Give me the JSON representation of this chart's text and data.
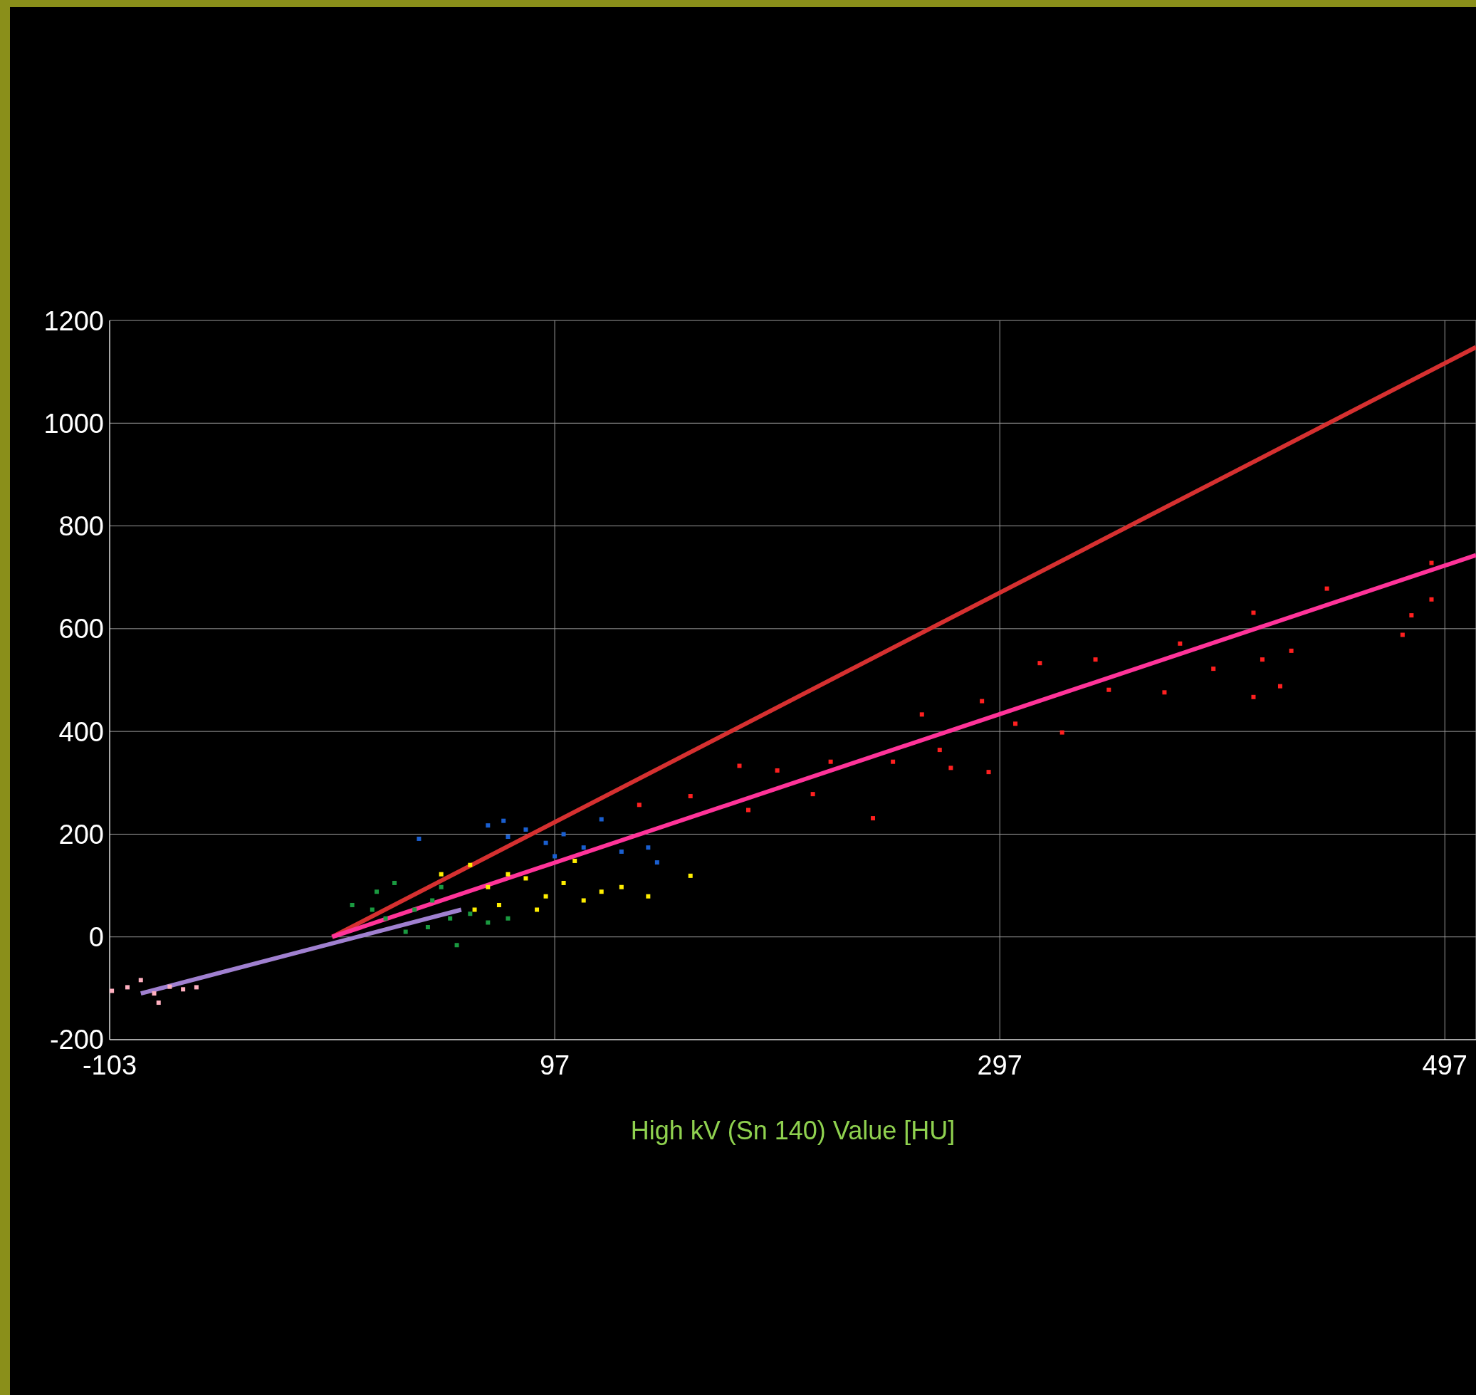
{
  "chart_data": {
    "type": "scatter",
    "xlabel": "High kV (Sn 140) Value [HU]",
    "xlim": [
      -103,
      511
    ],
    "ylim": [
      -200,
      1200
    ],
    "xticks": [
      -103,
      97,
      297,
      497
    ],
    "yticks": [
      -200,
      0,
      200,
      400,
      600,
      800,
      1000,
      1200
    ],
    "grid": true,
    "marker": "square",
    "series": [
      {
        "color": "#ffb0c0",
        "x": [
          -102,
          -95,
          -89,
          -83,
          -76,
          -70,
          -64,
          -81
        ],
        "values": [
          -105,
          -98,
          -84,
          -110,
          -97,
          -102,
          -98,
          -128
        ]
      },
      {
        "color": "#1a9a40",
        "x": [
          6,
          17,
          25,
          34,
          42,
          50,
          59,
          67,
          53,
          21,
          30,
          40,
          15,
          46,
          76
        ],
        "values": [
          62,
          88,
          105,
          53,
          71,
          36,
          45,
          28,
          -16,
          36,
          10,
          19,
          53,
          97,
          36
        ]
      },
      {
        "color": "#ffee00",
        "x": [
          46,
          59,
          67,
          76,
          84,
          93,
          101,
          110,
          118,
          127,
          139,
          158,
          72,
          89,
          106,
          61
        ],
        "values": [
          122,
          140,
          97,
          122,
          114,
          79,
          105,
          71,
          88,
          97,
          79,
          119,
          62,
          53,
          148,
          53
        ]
      },
      {
        "color": "#1a5fd0",
        "x": [
          67,
          76,
          84,
          93,
          101,
          110,
          118,
          127,
          139,
          143,
          36,
          74,
          97
        ],
        "values": [
          217,
          195,
          209,
          183,
          200,
          174,
          229,
          166,
          174,
          145,
          191,
          226,
          157
        ]
      },
      {
        "color": "#ff2020",
        "x": [
          135,
          158,
          180,
          184,
          197,
          213,
          221,
          240,
          249,
          262,
          270,
          275,
          289,
          292,
          304,
          315,
          325,
          340,
          346,
          371,
          378,
          393,
          411,
          411,
          415,
          423,
          428,
          444,
          478,
          482,
          491,
          491
        ],
        "values": [
          257,
          274,
          333,
          247,
          324,
          278,
          341,
          231,
          341,
          433,
          364,
          329,
          459,
          321,
          415,
          533,
          398,
          540,
          481,
          476,
          571,
          522,
          631,
          467,
          540,
          488,
          557,
          678,
          588,
          626,
          728,
          657
        ]
      },
      {
        "type": "line",
        "marker": "none",
        "color": "#d63030",
        "x": [
          -3,
          511
        ],
        "values": [
          0,
          1148
        ]
      },
      {
        "type": "line",
        "marker": "none",
        "color": "#ff3399",
        "x": [
          -3,
          511
        ],
        "values": [
          0,
          743
        ]
      },
      {
        "type": "line",
        "marker": "none",
        "color": "#a080d0",
        "x": [
          -89,
          55
        ],
        "values": [
          -110,
          53
        ]
      }
    ]
  }
}
